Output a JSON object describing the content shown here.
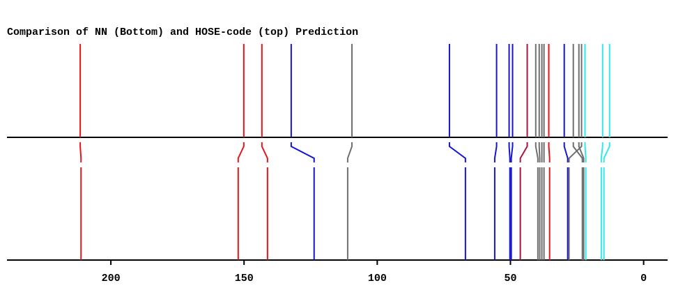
{
  "chart_data": {
    "type": "stick-comparison",
    "title": "Comparison of NN (Bottom) and HOSE-code (top) Prediction",
    "x_top": [
      211.5,
      150.1,
      143.3,
      132.3,
      109.5,
      72.9,
      55.2,
      50.5,
      49.2,
      43.7,
      40.5,
      39.2,
      38.2,
      37.4,
      35.6,
      29.8,
      26.4,
      24.3,
      23.3,
      22.0,
      15.4,
      12.8
    ],
    "x_bottom": [
      211.2,
      152.2,
      141.2,
      123.7,
      111.1,
      66.9,
      55.9,
      50.2,
      49.7,
      46.3,
      39.7,
      39.0,
      38.2,
      37.4,
      35.3,
      28.5,
      23.0,
      22.5,
      28.0,
      21.7,
      15.9,
      14.9
    ],
    "colors": [
      "#e8141a",
      "#e8141a",
      "#e8141a",
      "#1414d2",
      "#6e6e6e",
      "#1414d2",
      "#1414d2",
      "#1414d2",
      "#1414d2",
      "#b0103a",
      "#6e6e6e",
      "#6e6e6e",
      "#6e6e6e",
      "#6e6e6e",
      "#e8141a",
      "#1414d2",
      "#6e6e6e",
      "#6e6e6e",
      "#6e6e6e",
      "#2ee8ee",
      "#2ee8ee",
      "#2ee8ee"
    ],
    "xlim": [
      239,
      -9
    ],
    "xticks": [
      200,
      150,
      100,
      50,
      0
    ]
  }
}
